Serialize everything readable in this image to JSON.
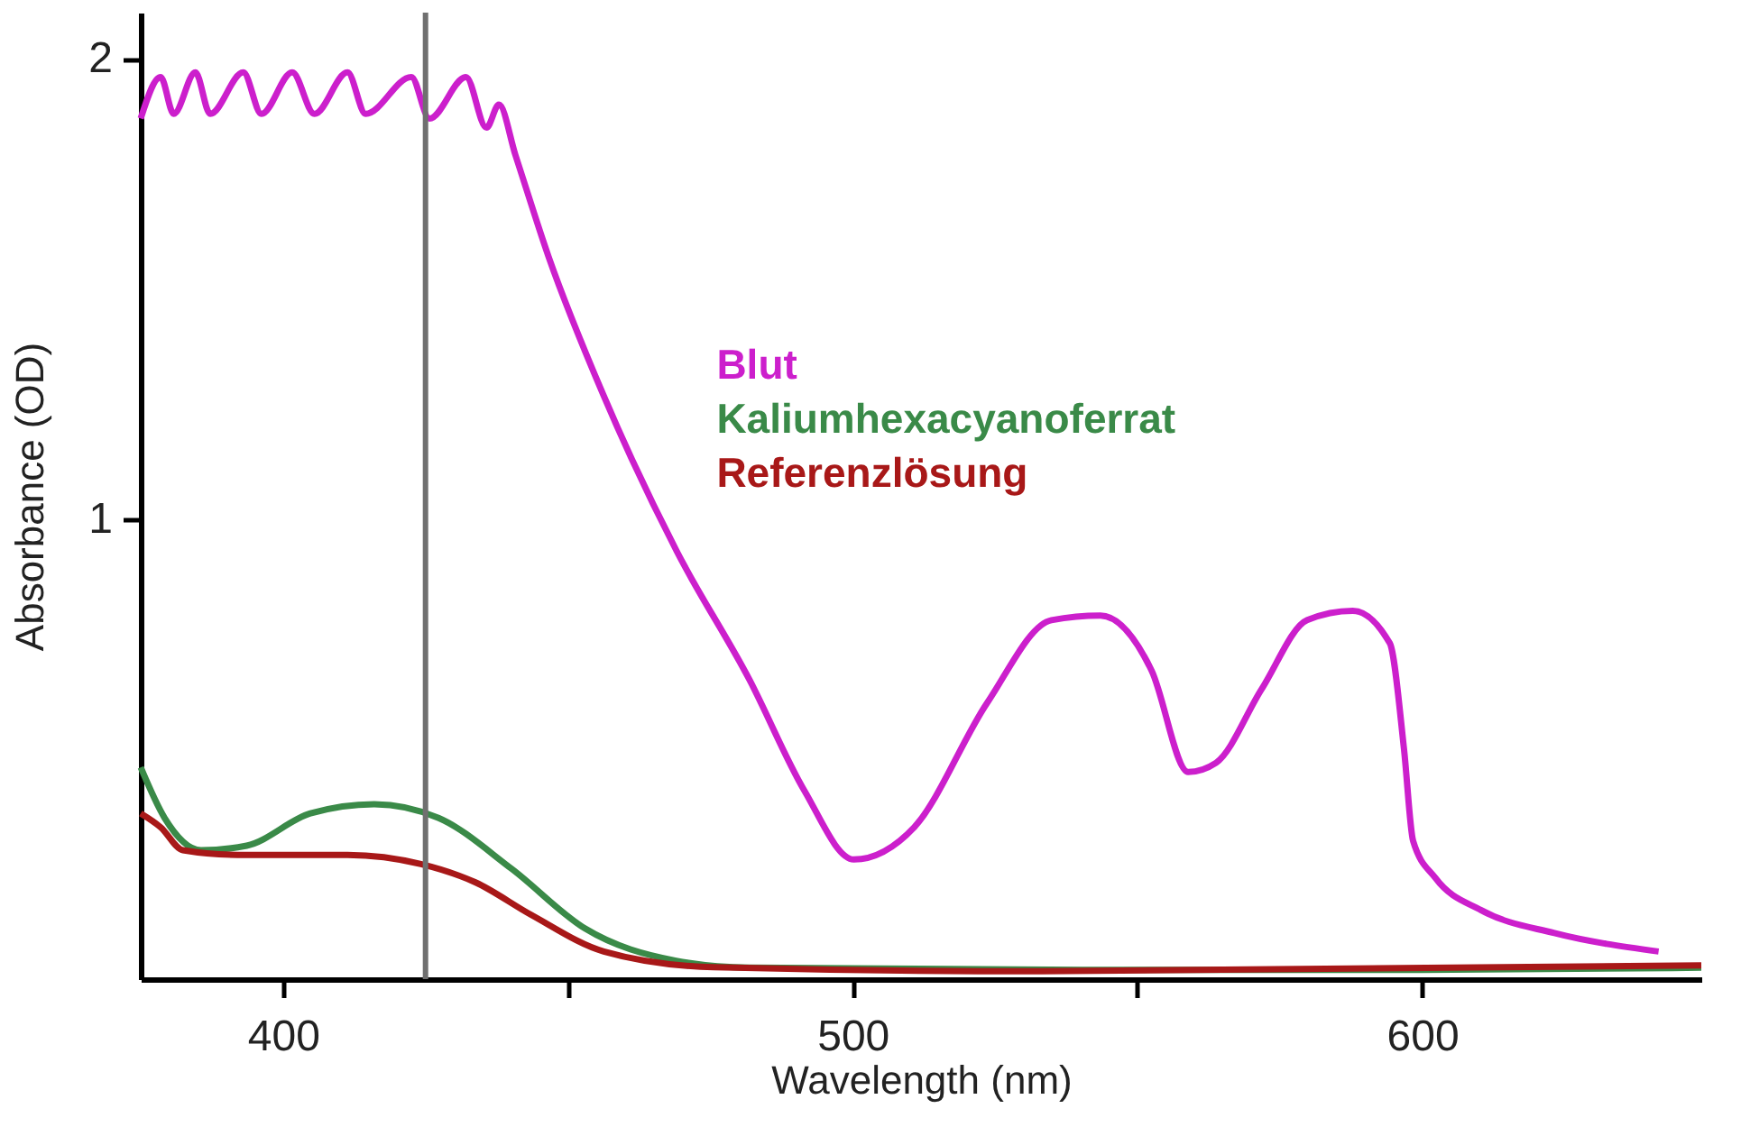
{
  "chart_data": {
    "type": "line",
    "xlabel": "Wavelength (nm)",
    "ylabel": "Absorbance (OD)",
    "xlim": [
      375,
      649
    ],
    "ylim": [
      0,
      2.1
    ],
    "xticks": [
      400,
      {
        "value": 450,
        "label": null
      },
      500,
      {
        "value": 550,
        "label": null
      },
      600
    ],
    "yticks": [
      1,
      2
    ],
    "grid": false,
    "legend": "right",
    "ref_lines": [
      {
        "axis": "x",
        "value": 425,
        "color": "#707070"
      }
    ],
    "series": [
      {
        "name": "Blut",
        "color": "#cc1fcc",
        "x": [
          375,
          378.5,
          380.8,
          384.6,
          387.2,
          393.0,
          396.2,
          401.6,
          405.5,
          411.3,
          414.5,
          422.5,
          425.7,
          432.1,
          435.7,
          437.9,
          440.8,
          446.6,
          456.2,
          469.1,
          481.9,
          491.5,
          500.2,
          510.8,
          523.6,
          534.9,
          543.5,
          552.5,
          558.9,
          563.8,
          571.8,
          579.8,
          587.8,
          594.3,
          596.8,
          598.4,
          602.3,
          610.3,
          623.2,
          641.5
        ],
        "values": [
          1.87,
          1.96,
          1.88,
          1.97,
          1.88,
          1.97,
          1.88,
          1.97,
          1.88,
          1.97,
          1.88,
          1.96,
          1.87,
          1.96,
          1.85,
          1.9,
          1.79,
          1.57,
          1.27,
          0.93,
          0.65,
          0.41,
          0.26,
          0.33,
          0.6,
          0.78,
          0.79,
          0.67,
          0.45,
          0.47,
          0.63,
          0.78,
          0.8,
          0.73,
          0.5,
          0.3,
          0.22,
          0.15,
          0.1,
          0.06
        ]
      },
      {
        "name": "Kaliumhexacyanoferrat",
        "color": "#3a8a48",
        "x": [
          375,
          379.2,
          385.6,
          393.6,
          404.8,
          416,
          427.3,
          440.1,
          453,
          469,
          481.9,
          550,
          600,
          649
        ],
        "values": [
          0.46,
          0.35,
          0.28,
          0.29,
          0.36,
          0.38,
          0.35,
          0.24,
          0.11,
          0.04,
          0.025,
          0.02,
          0.02,
          0.025
        ]
      },
      {
        "name": "Referenzlösung",
        "color": "#a81818",
        "x": [
          375,
          378.5,
          382.4,
          392,
          411.3,
          424.2,
          433.8,
          443.5,
          456.3,
          475.6,
          533,
          649
        ],
        "values": [
          0.36,
          0.33,
          0.28,
          0.27,
          0.27,
          0.25,
          0.21,
          0.14,
          0.06,
          0.026,
          0.017,
          0.03
        ]
      }
    ]
  }
}
